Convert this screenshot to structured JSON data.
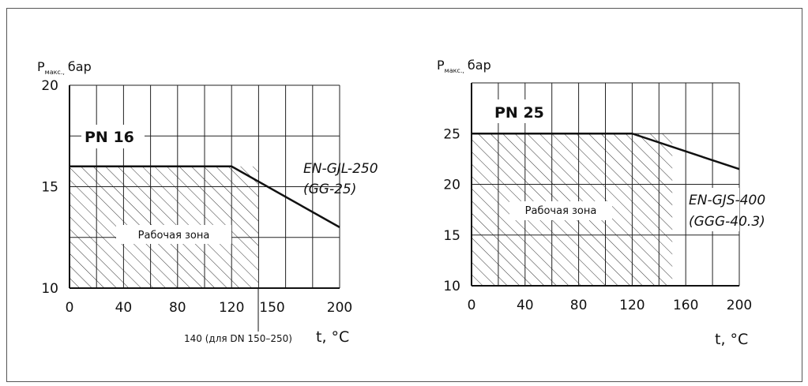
{
  "chart_data": [
    {
      "type": "line",
      "label": "PN 16",
      "ylabel_main": "P",
      "ylabel_sub": "макс.,",
      "ylabel_unit": "бар",
      "xlabel": "t, °C",
      "xlim": [
        0,
        200
      ],
      "ylim": [
        10,
        20
      ],
      "xticks": [
        0,
        40,
        80,
        120,
        150,
        200
      ],
      "yticks": [
        10,
        15,
        20
      ],
      "series": [
        {
          "name": "EN-GJL-250",
          "x": [
            0,
            120,
            200
          ],
          "y": [
            16,
            16,
            13
          ]
        }
      ],
      "material_lines": [
        "EN-GJL-250",
        "(GG-25)"
      ],
      "zone_label": "Рабочая зона",
      "zone_x_max": 140,
      "note": "140 (для DN 150–250)",
      "grid": true
    },
    {
      "type": "line",
      "label": "PN 25",
      "ylabel_main": "P",
      "ylabel_sub": "макс.,",
      "ylabel_unit": "бар",
      "xlabel": "t, °C",
      "xlim": [
        0,
        200
      ],
      "ylim": [
        10,
        30
      ],
      "xticks": [
        0,
        40,
        80,
        120,
        160,
        200
      ],
      "yticks": [
        10,
        15,
        20,
        25
      ],
      "series": [
        {
          "name": "EN-GJS-400",
          "x": [
            0,
            120,
            200
          ],
          "y": [
            25,
            25,
            21.5
          ]
        }
      ],
      "material_lines": [
        "EN-GJS-400",
        "(GGG-40.3)"
      ],
      "zone_label": "Рабочая зона",
      "zone_x_max": 150,
      "grid": true
    }
  ]
}
